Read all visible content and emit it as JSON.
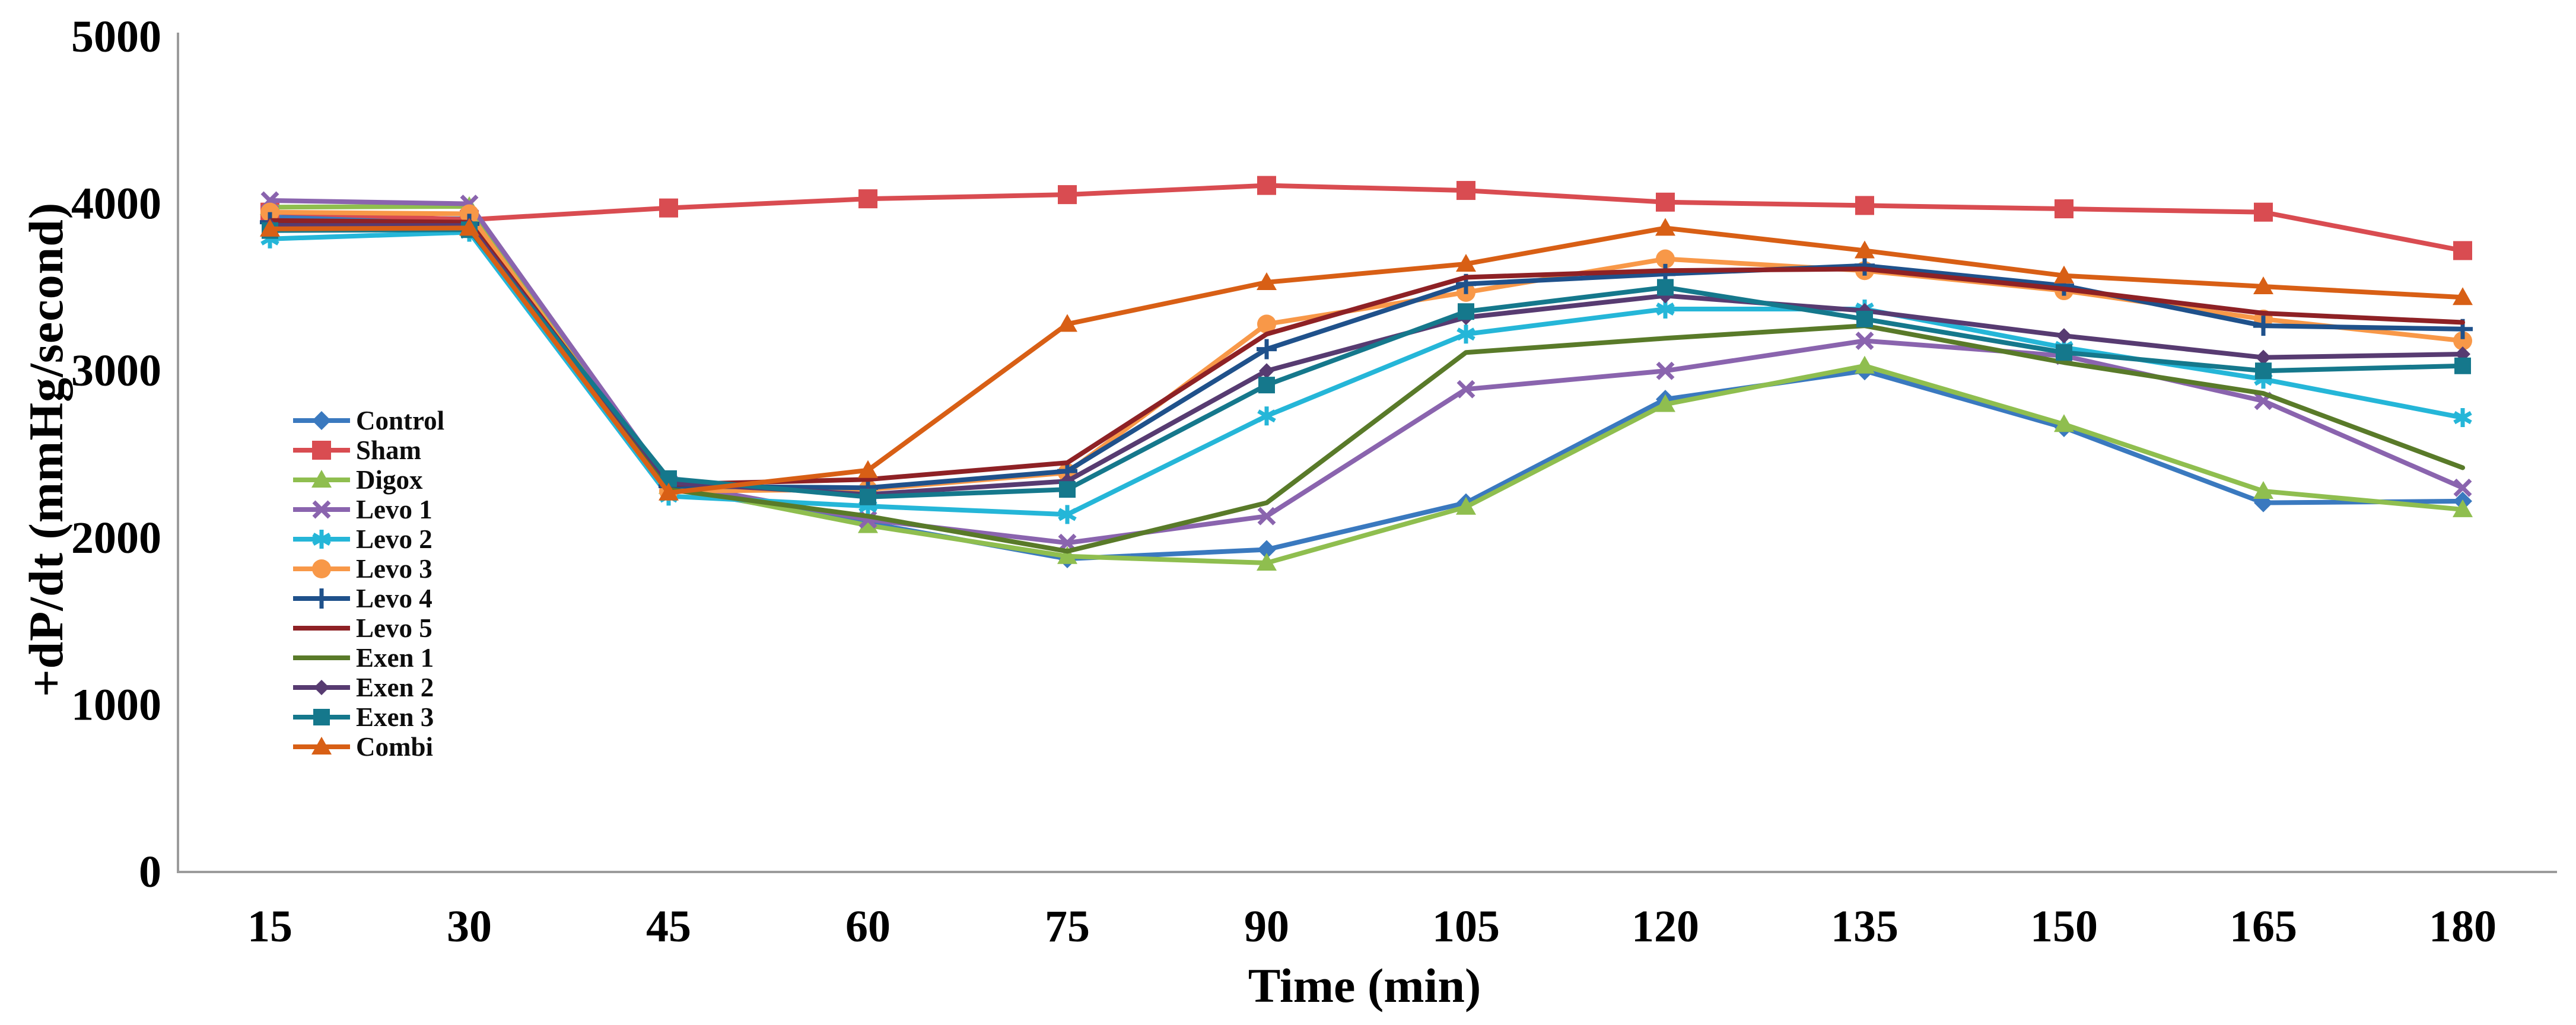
{
  "figure": {
    "background": "#ffffff",
    "axis_color": "#9b9b9b",
    "text_color": "#000000"
  },
  "chart_data": {
    "type": "line",
    "title": "",
    "xlabel": "Time (min)",
    "ylabel": "+dP/dt (mmHg/second)",
    "x": [
      15,
      30,
      45,
      60,
      75,
      90,
      105,
      120,
      135,
      150,
      165,
      180
    ],
    "xticklabels": [
      "15",
      "30",
      "45",
      "60",
      "75",
      "90",
      "105",
      "120",
      "135",
      "150",
      "165",
      "180"
    ],
    "ylim": [
      0,
      5000
    ],
    "yticks": [
      0,
      1000,
      2000,
      3000,
      4000,
      5000
    ],
    "yticklabels": [
      "0",
      "1000",
      "2000",
      "3000",
      "4000",
      "5000"
    ],
    "grid": "off",
    "legend_position": "inside-left",
    "series": [
      {
        "name": "Control",
        "color": "#3A79BF",
        "marker": "diamond",
        "values": [
          3920,
          3910,
          2300,
          2090,
          1875,
          1930,
          2210,
          2830,
          3000,
          2660,
          2210,
          2220
        ]
      },
      {
        "name": "Sham",
        "color": "#D94C51",
        "marker": "square",
        "values": [
          3950,
          3905,
          3975,
          4030,
          4055,
          4110,
          4080,
          4010,
          3990,
          3970,
          3950,
          3720
        ]
      },
      {
        "name": "Digox",
        "color": "#8FBE4F",
        "marker": "triangle",
        "values": [
          3980,
          3985,
          2310,
          2075,
          1890,
          1850,
          2185,
          2800,
          3030,
          2680,
          2280,
          2170
        ]
      },
      {
        "name": "Levo 1",
        "color": "#8A64AE",
        "marker": "x",
        "values": [
          4020,
          4000,
          2330,
          2110,
          1970,
          2130,
          2890,
          3000,
          3180,
          3090,
          2820,
          2300
        ]
      },
      {
        "name": "Levo 2",
        "color": "#25B6D8",
        "marker": "asterisk",
        "values": [
          3790,
          3830,
          2250,
          2190,
          2140,
          2730,
          3220,
          3370,
          3370,
          3140,
          2950,
          2720
        ]
      },
      {
        "name": "Levo 3",
        "color": "#F89848",
        "marker": "circle",
        "values": [
          3950,
          3940,
          2280,
          2290,
          2390,
          3280,
          3470,
          3670,
          3600,
          3480,
          3310,
          3180
        ]
      },
      {
        "name": "Levo 4",
        "color": "#1F518B",
        "marker": "plus",
        "values": [
          3890,
          3880,
          2310,
          2300,
          2400,
          3130,
          3520,
          3580,
          3630,
          3510,
          3270,
          3250
        ]
      },
      {
        "name": "Levo 5",
        "color": "#8E2125",
        "marker": "none",
        "values": [
          3900,
          3890,
          2320,
          2350,
          2450,
          3220,
          3560,
          3600,
          3610,
          3490,
          3345,
          3290
        ]
      },
      {
        "name": "Exen 1",
        "color": "#597A29",
        "marker": "none",
        "values": [
          3860,
          3860,
          2290,
          2130,
          1920,
          2210,
          3110,
          3195,
          3270,
          3050,
          2865,
          2420
        ]
      },
      {
        "name": "Exen 2",
        "color": "#573B71",
        "marker": "diamond-small",
        "values": [
          3870,
          3870,
          2330,
          2260,
          2340,
          3000,
          3320,
          3450,
          3360,
          3210,
          3080,
          3100
        ]
      },
      {
        "name": "Exen 3",
        "color": "#15788C",
        "marker": "square-small",
        "values": [
          3840,
          3845,
          2355,
          2245,
          2290,
          2915,
          3355,
          3500,
          3310,
          3110,
          3000,
          3030
        ]
      },
      {
        "name": "Combi",
        "color": "#D85F15",
        "marker": "triangle",
        "values": [
          3850,
          3855,
          2270,
          2405,
          3280,
          3530,
          3640,
          3855,
          3720,
          3570,
          3505,
          3440
        ]
      }
    ]
  }
}
